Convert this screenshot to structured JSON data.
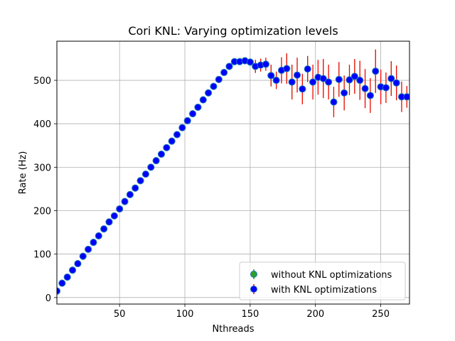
{
  "chart_data": {
    "type": "scatter",
    "title": "Cori KNL: Varying optimization levels",
    "xlabel": "Nthreads",
    "ylabel": "Rate (Hz)",
    "xlim": [
      2,
      272
    ],
    "ylim": [
      -15,
      590
    ],
    "xticks": [
      50,
      100,
      150,
      200,
      250
    ],
    "yticks": [
      0,
      100,
      200,
      300,
      400,
      500
    ],
    "grid": true,
    "legend_position": "lower-right",
    "series": [
      {
        "name": "without KNL optimizations",
        "color": "#2ca02c",
        "marker": "circle",
        "x": [
          2,
          6,
          10,
          14,
          18,
          22,
          26,
          30,
          34,
          38,
          42,
          46,
          50,
          54,
          58,
          62,
          66,
          70,
          74,
          78,
          82,
          86,
          90,
          94,
          98,
          102,
          106,
          110,
          114,
          118,
          122,
          126,
          130,
          134,
          138,
          142,
          146,
          150,
          154,
          158,
          162,
          166,
          170,
          174,
          178,
          182,
          186,
          190,
          194,
          198,
          202,
          206,
          210,
          214,
          218,
          222,
          226,
          230,
          234,
          238,
          242,
          246,
          250,
          254,
          258,
          262,
          266,
          270
        ],
        "y": [
          15,
          33,
          47,
          63,
          78,
          95,
          111,
          127,
          142,
          158,
          174,
          188,
          204,
          221,
          237,
          252,
          269,
          284,
          300,
          315,
          330,
          345,
          360,
          375,
          391,
          407,
          423,
          438,
          455,
          471,
          486,
          502,
          518,
          532,
          543,
          543,
          545,
          542,
          532,
          535,
          537,
          511,
          500,
          523,
          527,
          496,
          512,
          480,
          526,
          496,
          507,
          504,
          496,
          450,
          502,
          471,
          501,
          509,
          500,
          481,
          465,
          521,
          485,
          483,
          504,
          494,
          462,
          462
        ],
        "yerr": [
          2,
          2,
          2,
          2,
          2,
          2,
          2,
          2,
          2,
          2,
          2,
          2,
          2,
          2,
          2,
          2,
          2,
          2,
          2,
          2,
          2,
          2,
          2,
          2,
          2,
          2,
          2,
          2,
          2,
          2,
          2,
          2,
          2,
          2,
          3,
          4,
          5,
          8,
          15,
          15,
          15,
          25,
          20,
          30,
          35,
          40,
          40,
          35,
          30,
          40,
          40,
          45,
          40,
          35,
          40,
          40,
          35,
          40,
          45,
          45,
          40,
          50,
          40,
          35,
          40,
          40,
          35,
          25
        ]
      },
      {
        "name": "with KNL optimizations",
        "color": "#0000ff",
        "errcolor": "#ff0000",
        "marker": "circle",
        "x": [
          2,
          6,
          10,
          14,
          18,
          22,
          26,
          30,
          34,
          38,
          42,
          46,
          50,
          54,
          58,
          62,
          66,
          70,
          74,
          78,
          82,
          86,
          90,
          94,
          98,
          102,
          106,
          110,
          114,
          118,
          122,
          126,
          130,
          134,
          138,
          142,
          146,
          150,
          154,
          158,
          162,
          166,
          170,
          174,
          178,
          182,
          186,
          190,
          194,
          198,
          202,
          206,
          210,
          214,
          218,
          222,
          226,
          230,
          234,
          238,
          242,
          246,
          250,
          254,
          258,
          262,
          266,
          270
        ],
        "y": [
          15,
          33,
          47,
          63,
          78,
          95,
          111,
          127,
          142,
          158,
          174,
          188,
          204,
          221,
          237,
          252,
          269,
          284,
          300,
          315,
          330,
          345,
          360,
          375,
          391,
          407,
          423,
          438,
          455,
          471,
          486,
          502,
          518,
          532,
          543,
          543,
          545,
          542,
          532,
          535,
          537,
          511,
          500,
          523,
          527,
          496,
          512,
          480,
          526,
          496,
          507,
          504,
          496,
          450,
          502,
          471,
          501,
          509,
          500,
          481,
          465,
          521,
          485,
          483,
          504,
          494,
          462,
          462
        ],
        "yerr": [
          2,
          2,
          2,
          2,
          2,
          2,
          2,
          2,
          2,
          2,
          2,
          2,
          2,
          2,
          2,
          2,
          2,
          2,
          2,
          2,
          2,
          2,
          2,
          2,
          2,
          2,
          2,
          2,
          2,
          2,
          2,
          2,
          2,
          2,
          3,
          4,
          5,
          8,
          15,
          15,
          15,
          25,
          20,
          30,
          35,
          40,
          40,
          35,
          30,
          40,
          40,
          45,
          40,
          35,
          40,
          40,
          35,
          40,
          45,
          45,
          40,
          50,
          40,
          35,
          40,
          40,
          35,
          25
        ]
      }
    ]
  }
}
